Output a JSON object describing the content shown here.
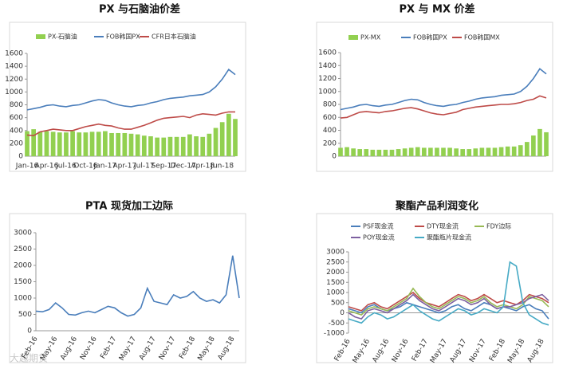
{
  "watermark": "大越期货",
  "chart_data": [
    {
      "type": "combo",
      "title": "PX 与石脑油价差",
      "categories": [
        "Jan-16",
        null,
        null,
        "Apr-16",
        null,
        null,
        "Jul-16",
        null,
        null,
        "Oct-16",
        null,
        null,
        "Jan-17",
        null,
        null,
        "Apr-17",
        null,
        null,
        "Jul-17",
        null,
        null,
        "Sep-17",
        null,
        null,
        "Dec-17",
        null,
        null,
        "Apr-18",
        null,
        null,
        "Jun-18",
        null,
        null
      ],
      "series": [
        {
          "name": "PX-石脑油",
          "type": "bar",
          "color": "#92d050",
          "values": [
            390,
            420,
            380,
            390,
            380,
            370,
            370,
            390,
            370,
            370,
            380,
            380,
            390,
            360,
            360,
            360,
            350,
            340,
            320,
            310,
            290,
            290,
            300,
            300,
            300,
            340,
            310,
            300,
            350,
            440,
            530,
            660,
            580
          ]
        },
        {
          "name": "FOB韩国PX",
          "type": "line",
          "color": "#4a7ebb",
          "values": [
            720,
            740,
            760,
            790,
            800,
            780,
            770,
            790,
            800,
            830,
            860,
            880,
            870,
            830,
            800,
            780,
            770,
            790,
            800,
            830,
            850,
            880,
            900,
            910,
            920,
            940,
            950,
            960,
            1000,
            1080,
            1200,
            1350,
            1270
          ]
        },
        {
          "name": "CFR日本石脑油",
          "type": "line",
          "color": "#be4b48",
          "values": [
            330,
            320,
            380,
            400,
            420,
            410,
            400,
            400,
            430,
            460,
            480,
            500,
            480,
            470,
            440,
            420,
            420,
            450,
            480,
            520,
            560,
            590,
            600,
            610,
            620,
            600,
            640,
            660,
            650,
            640,
            670,
            690,
            690
          ]
        }
      ],
      "ylim": [
        0,
        1600
      ],
      "yticks": [
        0,
        200,
        400,
        600,
        800,
        1000,
        1200,
        1400,
        1600
      ],
      "grid": false
    },
    {
      "type": "combo",
      "title": "PX 与 MX 价差",
      "series": [
        {
          "name": "PX-MX",
          "type": "bar",
          "color": "#92d050",
          "values": [
            130,
            140,
            120,
            110,
            110,
            100,
            100,
            100,
            100,
            110,
            120,
            130,
            140,
            130,
            130,
            130,
            130,
            130,
            120,
            110,
            110,
            120,
            130,
            130,
            130,
            140,
            150,
            150,
            170,
            220,
            320,
            420,
            370
          ]
        },
        {
          "name": "FOB韩国PX",
          "type": "line",
          "color": "#4a7ebb",
          "values": [
            720,
            740,
            760,
            790,
            800,
            780,
            770,
            790,
            800,
            830,
            860,
            880,
            870,
            830,
            800,
            780,
            770,
            790,
            800,
            830,
            850,
            880,
            900,
            910,
            920,
            940,
            950,
            960,
            1000,
            1080,
            1200,
            1350,
            1270
          ]
        },
        {
          "name": "FOB韩国MX",
          "type": "line",
          "color": "#be4b48",
          "values": [
            590,
            600,
            640,
            680,
            690,
            680,
            670,
            690,
            700,
            720,
            740,
            750,
            730,
            700,
            670,
            650,
            640,
            660,
            680,
            720,
            740,
            760,
            770,
            780,
            790,
            800,
            800,
            810,
            830,
            860,
            880,
            930,
            900
          ]
        }
      ],
      "ylim": [
        0,
        1600
      ],
      "yticks": [
        0,
        200,
        400,
        600,
        800,
        1000,
        1200,
        1400,
        1600
      ],
      "grid": false
    },
    {
      "type": "line",
      "title": "PTA 现货加工边际",
      "categories": [
        "Feb-16",
        null,
        null,
        "May-16",
        null,
        null,
        "Aug-16",
        null,
        null,
        "Nov-16",
        null,
        null,
        "Feb-17",
        null,
        null,
        "May-17",
        null,
        null,
        "Aug-17",
        null,
        null,
        "Nov-17",
        null,
        null,
        "Feb-18",
        null,
        null,
        "May-18",
        null,
        null,
        "Aug-18",
        null
      ],
      "series": [
        {
          "type": "line",
          "color": "#4a7ebb",
          "values": [
            600,
            580,
            650,
            850,
            700,
            500,
            480,
            550,
            600,
            550,
            650,
            750,
            700,
            550,
            450,
            500,
            700,
            1300,
            900,
            850,
            800,
            1100,
            1000,
            1050,
            1200,
            1000,
            900,
            950,
            850,
            1100,
            2300,
            1000
          ]
        }
      ],
      "ylim": [
        0,
        3000
      ],
      "yticks": [
        0,
        500,
        1000,
        1500,
        2000,
        2500,
        3000
      ],
      "grid": false
    },
    {
      "type": "line",
      "title": "聚酯产品利润变化",
      "categories": [
        "Feb-16",
        null,
        null,
        "May-16",
        null,
        null,
        "Aug-16",
        null,
        null,
        "Nov-16",
        null,
        null,
        "Feb-17",
        null,
        null,
        "May-17",
        null,
        null,
        "Aug-17",
        null,
        null,
        "Nov-17",
        null,
        null,
        "Feb-18",
        null,
        null,
        "May-18",
        null,
        null,
        "Aug-18",
        null
      ],
      "series": [
        {
          "name": "PSF现金流",
          "type": "line",
          "color": "#4a7ebb",
          "values": [
            200,
            100,
            0,
            300,
            400,
            200,
            100,
            200,
            300,
            500,
            400,
            300,
            200,
            100,
            0,
            100,
            300,
            400,
            200,
            100,
            300,
            500,
            400,
            200,
            300,
            200,
            100,
            300,
            400,
            200,
            100,
            -300
          ]
        },
        {
          "name": "DTY现金流",
          "type": "line",
          "color": "#be4b48",
          "values": [
            300,
            200,
            100,
            400,
            500,
            300,
            200,
            400,
            600,
            800,
            1000,
            700,
            500,
            400,
            300,
            500,
            700,
            900,
            800,
            600,
            700,
            900,
            700,
            500,
            600,
            500,
            400,
            600,
            900,
            800,
            700,
            500
          ]
        },
        {
          "name": "FDY边际",
          "type": "line",
          "color": "#98b954",
          "values": [
            100,
            0,
            -100,
            200,
            300,
            200,
            100,
            300,
            500,
            700,
            1200,
            800,
            500,
            300,
            200,
            400,
            600,
            800,
            700,
            500,
            600,
            800,
            500,
            300,
            400,
            300,
            200,
            400,
            800,
            700,
            600,
            300
          ]
        },
        {
          "name": "POY现金流",
          "type": "line",
          "color": "#7d60a0",
          "values": [
            0,
            -200,
            -300,
            100,
            200,
            100,
            0,
            200,
            400,
            600,
            900,
            600,
            400,
            200,
            100,
            300,
            500,
            700,
            600,
            400,
            500,
            700,
            400,
            200,
            300,
            300,
            400,
            500,
            700,
            800,
            900,
            600
          ]
        },
        {
          "name": "聚酯瓶片现金流",
          "type": "line",
          "color": "#46aac5",
          "values": [
            -300,
            -400,
            -500,
            -200,
            0,
            -100,
            -300,
            -200,
            0,
            200,
            400,
            100,
            -100,
            -300,
            -400,
            -200,
            0,
            200,
            100,
            -100,
            0,
            200,
            100,
            0,
            300,
            2500,
            2300,
            500,
            -100,
            -300,
            -500,
            -600
          ]
        }
      ],
      "ylim": [
        -1000,
        3000
      ],
      "yticks": [
        -1000,
        -500,
        0,
        500,
        1000,
        1500,
        2000,
        2500,
        3000
      ],
      "grid": false
    }
  ]
}
